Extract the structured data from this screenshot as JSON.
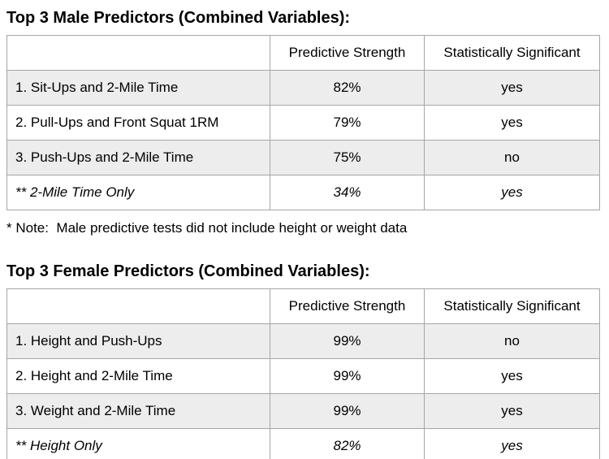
{
  "colors": {
    "background": "#ffffff",
    "row_stripe": "#ededed",
    "table_border": "#a6a6a6",
    "text": "#000000"
  },
  "male_section": {
    "title": "Top 3 Male Predictors (Combined Variables):",
    "columns": {
      "strength": "Predictive Strength",
      "significant": "Statistically Significant"
    },
    "rows": [
      {
        "label": "1. Sit-Ups and 2-Mile Time",
        "strength": "82%",
        "significant": "yes"
      },
      {
        "label": "2. Pull-Ups and Front Squat 1RM",
        "strength": "79%",
        "significant": "yes"
      },
      {
        "label": "3. Push-Ups and 2-Mile Time",
        "strength": "75%",
        "significant": "no"
      },
      {
        "label": "** 2-Mile Time Only",
        "strength": "34%",
        "significant": "yes"
      }
    ],
    "note": "* Note:  Male predictive tests did not include height or weight data"
  },
  "female_section": {
    "title": "Top 3 Female Predictors (Combined Variables):",
    "columns": {
      "strength": "Predictive Strength",
      "significant": "Statistically Significant"
    },
    "rows": [
      {
        "label": "1. Height and Push-Ups",
        "strength": "99%",
        "significant": "no"
      },
      {
        "label": "2. Height and 2-Mile Time",
        "strength": "99%",
        "significant": "yes"
      },
      {
        "label": "3. Weight and 2-Mile Time",
        "strength": "99%",
        "significant": "yes"
      },
      {
        "label": "** Height Only",
        "strength": "82%",
        "significant": "yes"
      }
    ]
  }
}
